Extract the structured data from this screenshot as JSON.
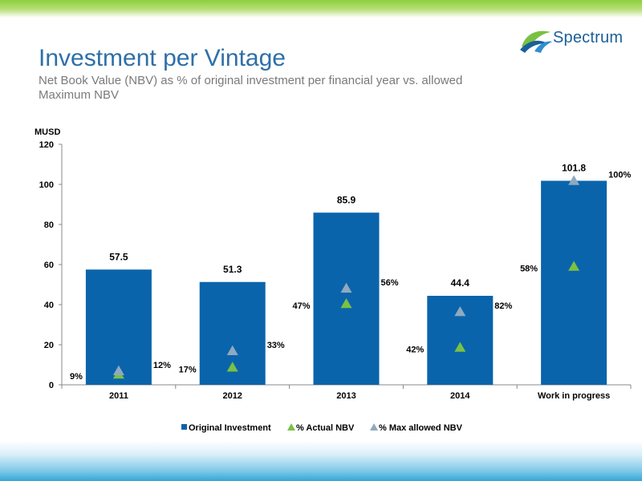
{
  "header": {
    "title": "Investment per Vintage",
    "subtitle": "Net Book Value (NBV) as % of original investment per financial year vs. allowed Maximum NBV",
    "logo_text": "Spectrum"
  },
  "colors": {
    "bar": "#0a64ab",
    "actual_nbv": "#7ac143",
    "max_allowed_nbv": "#8fa9c0",
    "title": "#2e6fa8",
    "top_band": "#8ccf3c",
    "bottom_band": "#35a6d6"
  },
  "chart_data": {
    "type": "bar",
    "ylabel": "MUSD",
    "ylim": [
      0,
      120
    ],
    "yticks": [
      0,
      20,
      40,
      60,
      80,
      100,
      120
    ],
    "categories": [
      "2011",
      "2012",
      "2013",
      "2014",
      "Work in progress"
    ],
    "series": [
      {
        "name": "Original Investment",
        "type": "bar",
        "values": [
          57.5,
          51.3,
          85.9,
          44.4,
          101.8
        ],
        "labels": [
          "57.5",
          "51.3",
          "85.9",
          "44.4",
          "101.8"
        ]
      },
      {
        "name": "% Actual NBV",
        "type": "marker",
        "values": [
          5.2,
          8.7,
          40.4,
          18.6,
          59.0
        ],
        "labels": [
          "9%",
          "17%",
          "47%",
          "42%",
          "58%"
        ]
      },
      {
        "name": "% Max allowed NBV",
        "type": "marker",
        "values": [
          6.9,
          16.9,
          48.1,
          36.4,
          101.8
        ],
        "labels": [
          "12%",
          "33%",
          "56%",
          "82%",
          "100%"
        ]
      }
    ],
    "legend_position": "bottom",
    "grid": false
  }
}
